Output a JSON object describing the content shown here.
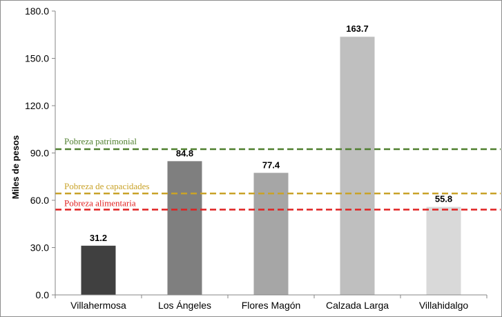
{
  "chart_data": {
    "type": "bar",
    "ylabel": "Miles de pesos",
    "ylim": [
      0,
      180
    ],
    "yticks": [
      "0.0",
      "30.0",
      "60.0",
      "90.0",
      "120.0",
      "150.0",
      "180.0"
    ],
    "grid": false,
    "categories": [
      "Villahermosa",
      "Los Ángeles",
      "Flores Magón",
      "Calzada Larga",
      "Villahidalgo"
    ],
    "values": [
      31.2,
      84.8,
      77.4,
      163.7,
      55.8
    ],
    "value_labels": [
      "31.2",
      "84.8",
      "77.4",
      "163.7",
      "55.8"
    ],
    "bar_colors": [
      "#404040",
      "#7f7f7f",
      "#a6a6a6",
      "#bfbfbf",
      "#d9d9d9"
    ],
    "reference_lines": [
      {
        "label": "Pobreza patrimonial",
        "value": 92.4,
        "color": "#4f7f2f"
      },
      {
        "label": "Pobreza de capacidades",
        "value": 64.3,
        "color": "#c9a227"
      },
      {
        "label": "Pobreza alimentaria",
        "value": 54.1,
        "color": "#e02020"
      }
    ]
  }
}
